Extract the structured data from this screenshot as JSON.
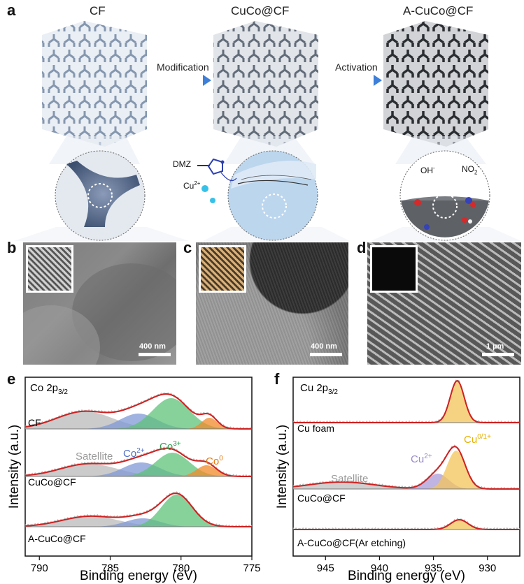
{
  "panel_labels": {
    "a": "a",
    "b": "b",
    "c": "c",
    "d": "d",
    "e": "e",
    "f": "f"
  },
  "schematic": {
    "titles": [
      "CF",
      "CuCo@CF",
      "A-CuCo@CF"
    ],
    "arrow1": "Modification",
    "arrow2": "Activation",
    "dmz": "DMZ",
    "cu_ion": "Cu",
    "cu_ion_sup": "2+",
    "oh": "OH",
    "oh_sup": "-",
    "no2": "NO",
    "no2_sub": "2",
    "no2_sup": "-"
  },
  "sem": {
    "b_scale": "400 nm",
    "c_scale": "400 nm",
    "d_scale": "1 µm"
  },
  "chart_data": [
    {
      "type": "line",
      "panel": "e",
      "title": "Co 2p3/2",
      "xlabel": "Binding energy (eV)",
      "ylabel": "Intensity (a.u.)",
      "xlim": [
        791,
        775
      ],
      "xticks": [
        790,
        785,
        780,
        775
      ],
      "reversed_x": true,
      "traces": [
        "CF",
        "CuCo@CF",
        "A-CuCo@CF"
      ],
      "peak_labels": [
        "Satellite",
        "Co2+",
        "Co3+",
        "Co0"
      ],
      "components": [
        {
          "name": "Satellite",
          "center": 786.5,
          "color": "#b9b9b9"
        },
        {
          "name": "Co2+",
          "center": 782.8,
          "color": "#7f98d6"
        },
        {
          "name": "Co3+",
          "center": 780.7,
          "color": "#5fc27a"
        },
        {
          "name": "Co0",
          "center": 778.1,
          "color": "#f08a2a"
        }
      ]
    },
    {
      "type": "line",
      "panel": "f",
      "title": "Cu 2p3/2",
      "xlabel": "Binding energy (eV)",
      "ylabel": "Intensity (a.u.)",
      "xlim": [
        948,
        927
      ],
      "xticks": [
        945,
        940,
        935,
        930
      ],
      "reversed_x": true,
      "traces": [
        "Cu foam",
        "CuCo@CF",
        "A-CuCo@CF(Ar etching)"
      ],
      "peak_labels": [
        "Satellite",
        "Cu2+",
        "Cu0/1+"
      ],
      "components": [
        {
          "name": "Satellite",
          "center": 943.5,
          "color": "#bfbfbf"
        },
        {
          "name": "Cu2+",
          "center": 934.6,
          "color": "#a99bd8"
        },
        {
          "name": "Cu0/1+",
          "center": 932.8,
          "color": "#f3c45a"
        }
      ]
    }
  ],
  "e": {
    "title_main": "Co 2p",
    "title_sub": "3/2",
    "labels": [
      "CF",
      "CuCo@CF",
      "A-CuCo@CF"
    ],
    "sat": "Satellite",
    "co2": "Co",
    "co2s": "2+",
    "co3": "Co",
    "co3s": "3+",
    "co0": "Co",
    "co0s": "0",
    "ylabel": "Intensity (a.u.)",
    "xlabel": "Binding energy (eV)",
    "ticks": [
      "790",
      "785",
      "780",
      "775"
    ]
  },
  "f": {
    "title_main": "Cu 2p",
    "title_sub": "3/2",
    "labels": [
      "Cu foam",
      "CuCo@CF",
      "A-CuCo@CF(Ar etching)"
    ],
    "sat": "Satellite",
    "cu2": "Cu",
    "cu2s": "2+",
    "cu01": "Cu",
    "cu01s": "0/1+",
    "ylabel": "Intensity (a.u.)",
    "xlabel": "Binding energy (eV)",
    "ticks": [
      "945",
      "940",
      "935",
      "930"
    ]
  },
  "colors": {
    "arrow": "#3d7fd9",
    "fit_red": "#d02020",
    "co3_text": "#2aa24f",
    "co2_text": "#4f6fc7",
    "co0_text": "#e57a12",
    "cu01_text": "#e8b100",
    "cu2_text": "#9b8cc8",
    "sat_text": "#9a9a9a"
  }
}
